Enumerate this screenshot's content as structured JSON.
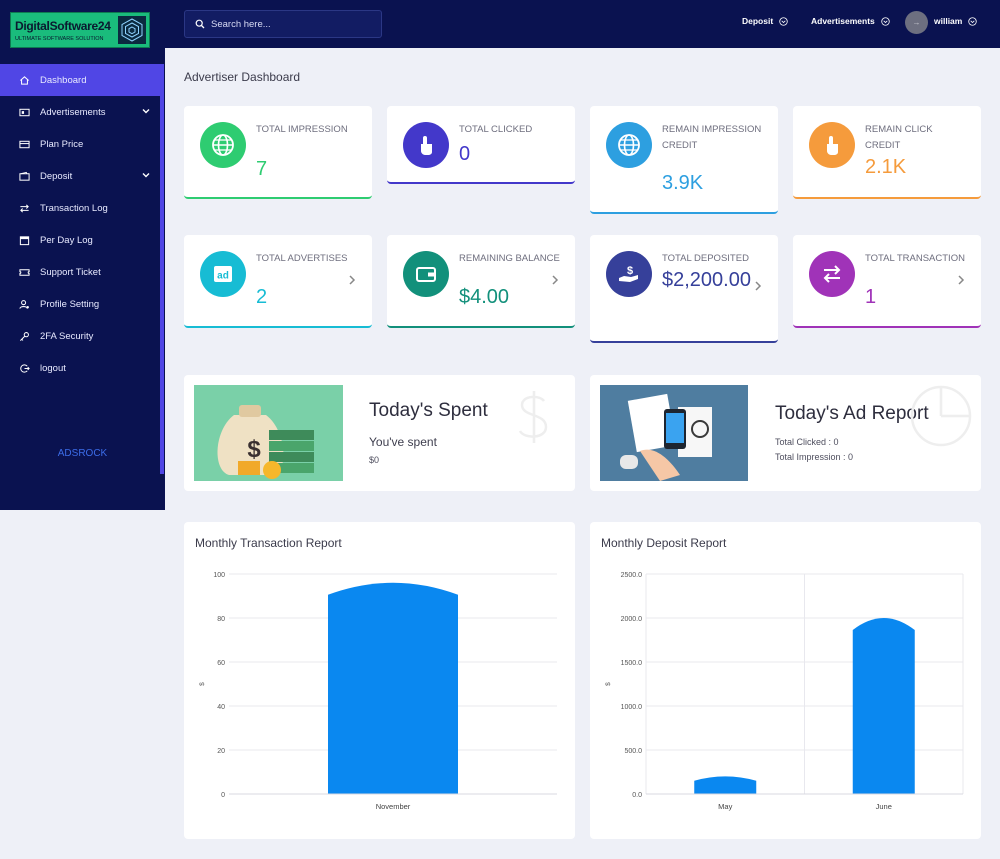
{
  "brand": {
    "name": "DigitalSoftware24",
    "tagline": "ULTIMATE SOFTWARE SOLUTION"
  },
  "search": {
    "placeholder": "Search here..."
  },
  "topbar": {
    "deposit": "Deposit",
    "advertisements": "Advertisements",
    "user": "william"
  },
  "sidebar": {
    "items": [
      {
        "label": "Dashboard",
        "icon": "home-icon",
        "active": true
      },
      {
        "label": "Advertisements",
        "icon": "ad-icon",
        "dropdown": true
      },
      {
        "label": "Plan Price",
        "icon": "card-icon"
      },
      {
        "label": "Deposit",
        "icon": "wallet-icon",
        "dropdown": true
      },
      {
        "label": "Transaction Log",
        "icon": "exchange-icon"
      },
      {
        "label": "Per Day Log",
        "icon": "calendar-icon"
      },
      {
        "label": "Support Ticket",
        "icon": "ticket-icon"
      },
      {
        "label": "Profile Setting",
        "icon": "user-cog-icon"
      },
      {
        "label": "2FA Security",
        "icon": "key-icon"
      },
      {
        "label": "logout",
        "icon": "logout-icon"
      }
    ],
    "footer": "ADSROCK"
  },
  "page_title": "Advertiser Dashboard",
  "stats": [
    {
      "label": "TOTAL IMPRESSION",
      "value": "7",
      "color": "#2ecc71",
      "icon": "globe-icon"
    },
    {
      "label": "TOTAL CLICKED",
      "value": "0",
      "color": "#4338ca",
      "icon": "hand-pointer-icon"
    },
    {
      "label": "REMAIN IMPRESSION CREDIT",
      "value": "3.9K",
      "color": "#2d9fe0",
      "icon": "globe-icon"
    },
    {
      "label": "REMAIN CLICK CREDIT",
      "value": "2.1K",
      "color": "#f59b3c",
      "icon": "hand-pointer-icon"
    },
    {
      "label": "TOTAL ADVERTISES",
      "value": "2",
      "color": "#17bcd4",
      "icon": "ad-icon"
    },
    {
      "label": "REMAINING BALANCE",
      "value": "$4.00",
      "color": "#12907b",
      "icon": "wallet-icon"
    },
    {
      "label": "TOTAL DEPOSITED",
      "value": "$2,200.00",
      "color": "#36409a",
      "icon": "hand-dollar-icon"
    },
    {
      "label": "TOTAL TRANSACTION",
      "value": "1",
      "color": "#a033b8",
      "icon": "exchange-icon"
    }
  ],
  "spent": {
    "title": "Today's Spent",
    "subtitle": "You've spent",
    "amount": "$0"
  },
  "ad_report": {
    "title": "Today's Ad Report",
    "clicked": "Total Clicked : 0",
    "impression": "Total Impression : 0"
  },
  "chart_data": [
    {
      "type": "bar",
      "title": "Monthly Transaction Report",
      "categories": [
        "November"
      ],
      "values": [
        96
      ],
      "ylabel": "$",
      "ylim": [
        0,
        100
      ],
      "yticks": [
        "100",
        "80",
        "60",
        "40",
        "20",
        "0"
      ],
      "color": "#0a88f0"
    },
    {
      "type": "bar",
      "title": "Monthly Deposit Report",
      "categories": [
        "May",
        "June"
      ],
      "values": [
        200,
        2000
      ],
      "ylabel": "$",
      "ylim": [
        0,
        2500
      ],
      "yticks": [
        "2500.0",
        "2000.0",
        "1500.0",
        "1000.0",
        "500.0",
        "0.0"
      ],
      "color": "#0a88f0"
    }
  ]
}
